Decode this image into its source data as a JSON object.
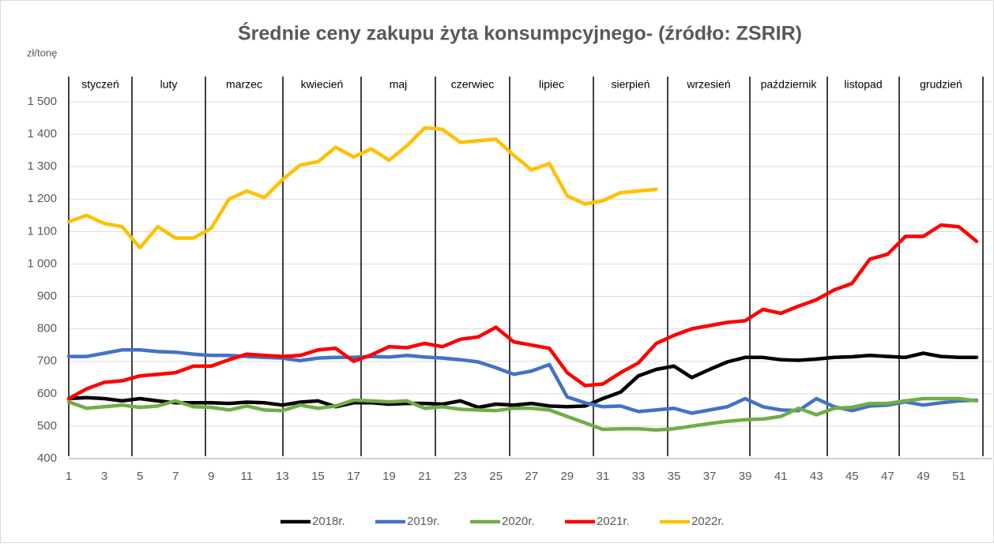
{
  "chart_data": {
    "type": "line",
    "title": "Średnie ceny zakupu żyta konsumpcyjnego- (źródło: ZSRIR)",
    "y_label": "zł/tonę",
    "months": [
      "styczeń",
      "luty",
      "marzec",
      "kwiecień",
      "maj",
      "czerwiec",
      "lipiec",
      "sierpień",
      "wrzesień",
      "październik",
      "listopad",
      "grudzień"
    ],
    "x": [
      1,
      2,
      3,
      4,
      5,
      6,
      7,
      8,
      9,
      10,
      11,
      12,
      13,
      14,
      15,
      16,
      17,
      18,
      19,
      20,
      21,
      22,
      23,
      24,
      25,
      26,
      27,
      28,
      29,
      30,
      31,
      32,
      33,
      34,
      35,
      36,
      37,
      38,
      39,
      40,
      41,
      42,
      43,
      44,
      45,
      46,
      47,
      48,
      49,
      50,
      51,
      52
    ],
    "xlim": [
      1,
      52
    ],
    "xticks": [
      1,
      3,
      5,
      7,
      9,
      11,
      13,
      15,
      17,
      19,
      21,
      23,
      25,
      27,
      29,
      31,
      33,
      35,
      37,
      39,
      41,
      43,
      45,
      47,
      49,
      51
    ],
    "ylim": [
      400,
      1500
    ],
    "yticks": [
      400,
      500,
      600,
      700,
      800,
      900,
      {
        "value": 1000,
        "label": "1 000"
      },
      {
        "value": 1100,
        "label": "1 100"
      },
      {
        "value": 1200,
        "label": "1 200"
      },
      {
        "value": 1300,
        "label": "1 300"
      },
      {
        "value": 1400,
        "label": "1 400"
      },
      {
        "value": 1500,
        "label": "1 500"
      }
    ],
    "grid": true,
    "legend": "bottom",
    "series": [
      {
        "name": "2018r.",
        "color": "#000000",
        "values": [
          585,
          588,
          585,
          578,
          585,
          578,
          572,
          572,
          572,
          570,
          574,
          572,
          565,
          574,
          578,
          560,
          572,
          572,
          568,
          570,
          570,
          568,
          578,
          558,
          568,
          565,
          570,
          562,
          560,
          562,
          585,
          605,
          655,
          675,
          685,
          650,
          675,
          698,
          712,
          712,
          705,
          703,
          707,
          712,
          714,
          718,
          715,
          712,
          725,
          715,
          712,
          712
        ]
      },
      {
        "name": "2019r.",
        "color": "#4472c4",
        "values": [
          715,
          715,
          725,
          735,
          735,
          730,
          728,
          722,
          718,
          718,
          715,
          712,
          710,
          702,
          710,
          712,
          712,
          715,
          713,
          718,
          713,
          710,
          705,
          698,
          680,
          660,
          670,
          690,
          590,
          572,
          560,
          562,
          545,
          550,
          555,
          540,
          550,
          560,
          585,
          560,
          550,
          548,
          585,
          560,
          548,
          562,
          565,
          575,
          565,
          572,
          578,
          580
        ]
      },
      {
        "name": "2020r.",
        "color": "#70ad47",
        "values": [
          575,
          555,
          560,
          565,
          558,
          562,
          578,
          560,
          558,
          550,
          562,
          550,
          548,
          565,
          555,
          562,
          580,
          578,
          575,
          578,
          555,
          560,
          552,
          550,
          548,
          555,
          555,
          550,
          530,
          510,
          490,
          492,
          492,
          488,
          492,
          500,
          508,
          515,
          520,
          522,
          530,
          555,
          535,
          555,
          558,
          570,
          570,
          578,
          585,
          585,
          585,
          578
        ]
      },
      {
        "name": "2021r.",
        "color": "#ff0000",
        "values": [
          585,
          615,
          635,
          640,
          655,
          660,
          665,
          685,
          685,
          705,
          722,
          718,
          715,
          718,
          735,
          740,
          700,
          720,
          745,
          742,
          755,
          745,
          768,
          775,
          805,
          760,
          750,
          740,
          665,
          625,
          630,
          665,
          695,
          755,
          780,
          800,
          810,
          820,
          825,
          860,
          848,
          870,
          890,
          920,
          940,
          1015,
          1030,
          1085,
          1085,
          1120,
          1115,
          1070
        ]
      },
      {
        "name": "2022r.",
        "color": "#ffc000",
        "values": [
          1130,
          1150,
          1125,
          1115,
          1050,
          1115,
          1080,
          1080,
          1110,
          1200,
          1225,
          1205,
          1260,
          1305,
          1315,
          1360,
          1330,
          1355,
          1320,
          1365,
          1420,
          1415,
          1375,
          1380,
          1385,
          1335,
          1290,
          1310,
          1210,
          1185,
          1195,
          1220,
          1225,
          1230,
          null,
          null,
          null,
          null,
          null,
          null,
          null,
          null,
          null,
          null,
          null,
          null,
          null,
          null,
          null,
          null,
          null,
          null
        ]
      }
    ]
  }
}
